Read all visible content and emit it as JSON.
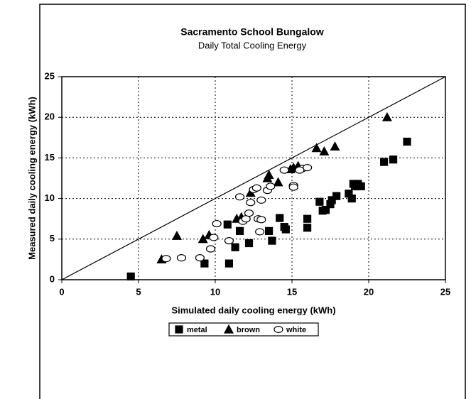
{
  "chart_data": {
    "type": "scatter",
    "title": "Sacramento School Bungalow",
    "subtitle": "Daily Total Cooling Energy",
    "x_label": "Simulated daily cooling energy (kWh)",
    "y_label": "Measured daily cooling energy (kWh)",
    "xlim": [
      0,
      25
    ],
    "ylim": [
      0,
      25
    ],
    "xticks": [
      0,
      5,
      10,
      15,
      20,
      25
    ],
    "yticks": [
      0,
      5,
      10,
      15,
      20,
      25
    ],
    "grid": true,
    "legend": "bottom",
    "series": [
      {
        "name": "metal",
        "marker": "square",
        "color": "#000000",
        "x": [
          4.5,
          9.3,
          10.9,
          10.8,
          11.3,
          11.6,
          12.2,
          13.5,
          13.7,
          14.2,
          14.5,
          14.6,
          16.0,
          16.0,
          16.8,
          17.0,
          17.2,
          17.5,
          17.6,
          17.9,
          18.7,
          18.9,
          19.0,
          19.1,
          19.3,
          19.5,
          21.0,
          21.6,
          22.5
        ],
        "values": [
          0.4,
          2.0,
          2.0,
          6.8,
          4.0,
          6.0,
          4.5,
          6.0,
          4.8,
          7.6,
          6.5,
          6.2,
          7.5,
          6.4,
          9.6,
          8.5,
          8.6,
          9.3,
          9.8,
          10.3,
          10.6,
          10.0,
          11.8,
          11.5,
          11.8,
          11.5,
          14.5,
          14.8,
          17.0
        ]
      },
      {
        "name": "brown",
        "marker": "triangle",
        "color": "#000000",
        "x": [
          6.5,
          7.5,
          9.2,
          9.6,
          11.4,
          11.7,
          12.3,
          13.4,
          13.5,
          14.1,
          14.9,
          15.1,
          15.4,
          16.6,
          17.1,
          17.8,
          21.2
        ],
        "values": [
          2.5,
          5.4,
          5.0,
          5.5,
          7.5,
          7.7,
          10.7,
          12.5,
          12.9,
          12.0,
          13.6,
          13.8,
          14.0,
          16.2,
          15.8,
          16.4,
          20.0
        ]
      },
      {
        "name": "white",
        "marker": "circle",
        "color": "#ffffff",
        "x": [
          6.8,
          7.8,
          9.0,
          9.7,
          9.9,
          10.1,
          10.9,
          11.6,
          11.8,
          12.0,
          12.2,
          12.3,
          12.5,
          12.7,
          12.8,
          12.9,
          13.0,
          13.0,
          13.4,
          13.6,
          14.5,
          15.1,
          15.1,
          15.7,
          16.0,
          15.5
        ],
        "values": [
          2.6,
          2.7,
          2.7,
          3.8,
          5.2,
          6.9,
          4.8,
          10.2,
          7.2,
          7.5,
          8.2,
          9.5,
          11.1,
          11.3,
          7.5,
          5.9,
          7.4,
          9.8,
          11.0,
          11.5,
          13.5,
          11.6,
          11.4,
          13.7,
          13.8,
          13.5
        ]
      }
    ]
  }
}
